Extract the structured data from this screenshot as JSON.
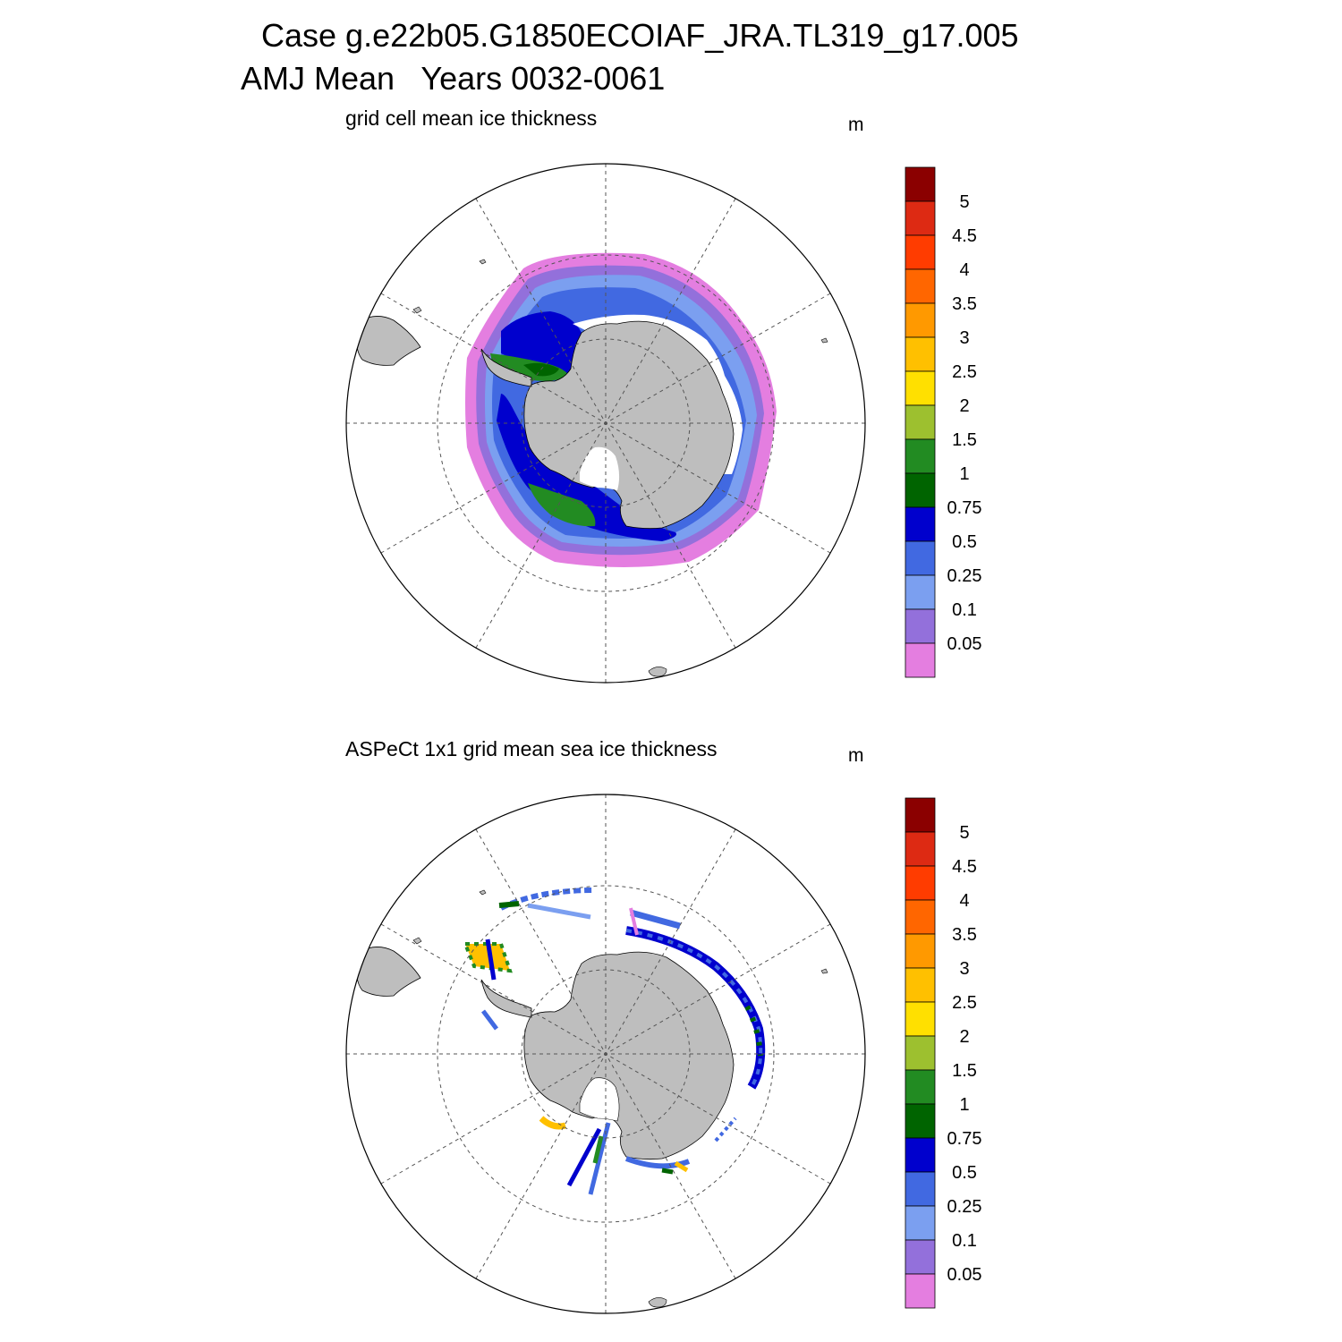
{
  "title": {
    "line1": "Case g.e22b05.G1850ECOIAF_JRA.TL319_g17.005",
    "line2": "AMJ Mean   Years 0032-0061"
  },
  "panels": [
    {
      "subtitle": "grid cell mean ice thickness",
      "units": "m"
    },
    {
      "subtitle": "ASPeCt 1x1 grid mean sea ice thickness",
      "units": "m"
    }
  ],
  "colorbar": {
    "labels": [
      "5",
      "4.5",
      "4",
      "3.5",
      "3",
      "2.5",
      "2",
      "1.5",
      "1",
      "0.75",
      "0.5",
      "0.25",
      "0.1",
      "0.05"
    ],
    "colors": [
      "#8b0000",
      "#dd2a13",
      "#ff3c00",
      "#ff6600",
      "#ff9900",
      "#ffc000",
      "#ffe000",
      "#9dc02f",
      "#228b22",
      "#006400",
      "#0000cd",
      "#4169e1",
      "#7b9ff0",
      "#9370db",
      "#e47ee0"
    ]
  },
  "land_color": "#bebebe"
}
